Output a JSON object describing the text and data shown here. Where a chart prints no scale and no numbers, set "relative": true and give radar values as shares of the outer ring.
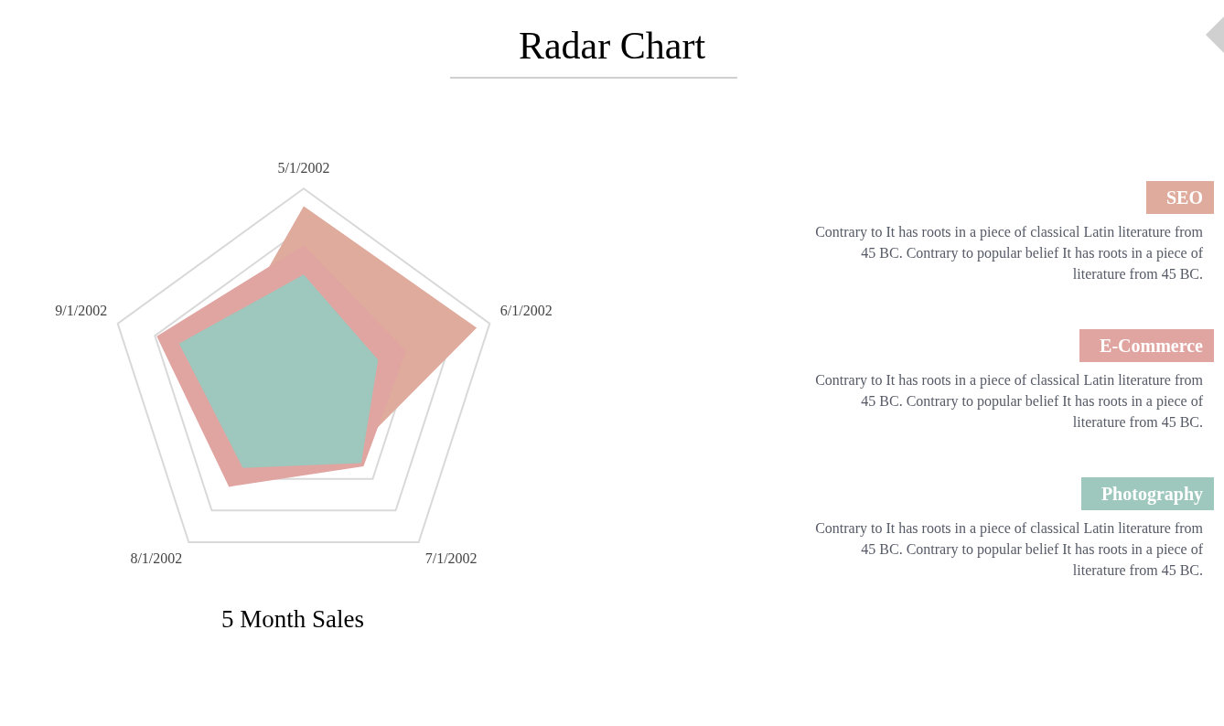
{
  "chart_data": {
    "type": "radar",
    "title": "Radar Chart",
    "relative": true,
    "legend": "right",
    "grid": true,
    "categories": [
      "5/1/2002",
      "6/1/2002",
      "7/1/2002",
      "8/1/2002",
      "9/1/2002"
    ],
    "series": [
      {
        "name": "SEO",
        "color": "#dfab9d",
        "values": [
          0.91,
          0.93,
          0.43,
          0.6,
          0.46
        ]
      },
      {
        "name": "E-Commerce",
        "color": "#e0a4a1",
        "values": [
          0.71,
          0.55,
          0.52,
          0.65,
          0.79
        ]
      },
      {
        "name": "Photography",
        "color": "#9ec7bd",
        "values": [
          0.56,
          0.4,
          0.5,
          0.53,
          0.67
        ]
      }
    ],
    "annotations": [
      "5 Month Sales",
      "Contrary to It has roots in a piece of classical Latin literature from 45 BC. Contrary to popular belief It has roots in a piece of literature from 45 BC.",
      "Contrary to It has roots in a piece of classical Latin literature from 45 BC. Contrary to popular belief It has roots in a piece of literature from 45 BC.",
      "Contrary to It has roots in a piece of classical Latin literature from 45 BC. Contrary to popular belief It has roots in a piece of literature from 45 BC."
    ]
  }
}
